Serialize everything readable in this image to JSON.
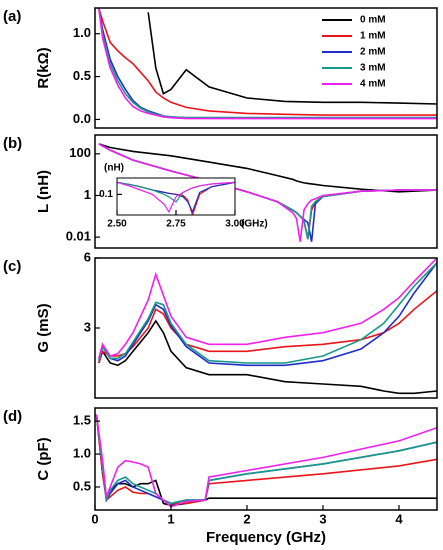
{
  "chart_data": [
    {
      "type": "line",
      "label": "(a)",
      "ylabel": "R(kΩ)",
      "x": [
        0.05,
        0.1,
        0.2,
        0.3,
        0.4,
        0.5,
        0.6,
        0.7,
        0.8,
        0.9,
        1.0,
        1.2,
        1.5,
        2.0,
        2.5,
        3.0,
        3.5,
        4.0,
        4.5
      ],
      "xlim": [
        0,
        4.5
      ],
      "ylim": [
        -0.1,
        1.3
      ],
      "yticks": [
        {
          "value": 0,
          "label": "0.0"
        },
        0.5,
        {
          "value": 1,
          "label": "1.0"
        }
      ],
      "legend": "upper right",
      "series": [
        {
          "name": "0 mM",
          "color": "#000000",
          "values": [
            null,
            null,
            null,
            null,
            null,
            null,
            null,
            1.25,
            0.6,
            0.3,
            0.35,
            0.58,
            0.38,
            0.25,
            0.21,
            0.2,
            0.2,
            0.19,
            0.18
          ]
        },
        {
          "name": "1 mM",
          "color": "#e8161b",
          "values": [
            1.3,
            1.15,
            0.9,
            0.8,
            0.72,
            0.65,
            0.55,
            0.45,
            0.32,
            0.25,
            0.2,
            0.14,
            0.1,
            0.07,
            0.06,
            0.05,
            0.05,
            0.05,
            0.05
          ]
        },
        {
          "name": "2 mM",
          "color": "#1f2ec8",
          "values": [
            1.3,
            1.05,
            0.7,
            0.5,
            0.35,
            0.22,
            0.14,
            0.1,
            0.07,
            0.04,
            0.03,
            0.02,
            0.02,
            0.02,
            0.02,
            0.02,
            0.02,
            0.02,
            0.02
          ]
        },
        {
          "name": "3 mM",
          "color": "#17998a",
          "values": [
            1.3,
            1.0,
            0.65,
            0.45,
            0.3,
            0.2,
            0.13,
            0.09,
            0.06,
            0.04,
            0.03,
            0.02,
            0.02,
            0.02,
            0.02,
            0.02,
            0.02,
            0.02,
            0.02
          ]
        },
        {
          "name": "4 mM",
          "color": "#f020f0",
          "values": [
            1.3,
            0.95,
            0.6,
            0.4,
            0.25,
            0.15,
            0.1,
            0.07,
            0.05,
            0.03,
            0.02,
            0.01,
            0.01,
            0.01,
            0.01,
            0.01,
            0.01,
            0.01,
            0.01
          ]
        }
      ]
    },
    {
      "type": "line",
      "label": "(b)",
      "ylabel": "L (nH)",
      "log": true,
      "x": [
        0.05,
        0.2,
        0.5,
        1.0,
        1.5,
        2.0,
        2.4,
        2.6,
        2.65,
        2.7,
        2.75,
        2.8,
        2.85,
        2.9,
        3.0,
        3.5,
        4.0,
        4.5
      ],
      "xlim": [
        0,
        4.5
      ],
      "ylim": [
        0.003,
        800
      ],
      "yticks": [
        0.01,
        1,
        100
      ],
      "series": [
        {
          "color": "#000000",
          "values": [
            300,
            200,
            130,
            80,
            40,
            20,
            9,
            6,
            5,
            4.5,
            4,
            3.8,
            3.6,
            3.4,
            3,
            2,
            1.5,
            1.8
          ]
        },
        {
          "color": "#e8161b",
          "values": [
            300,
            150,
            50,
            15,
            5,
            1.5,
            0.5,
            0.2,
            0.15,
            0.1,
            0.06,
            0.008,
            0.2,
            0.5,
            0.9,
            1.6,
            1.8,
            1.8
          ]
        },
        {
          "color": "#1f2ec8",
          "values": [
            300,
            150,
            50,
            15,
            5,
            1.5,
            0.5,
            0.2,
            0.15,
            0.1,
            0.07,
            0.05,
            0.006,
            0.4,
            0.9,
            1.6,
            1.8,
            1.8
          ]
        },
        {
          "color": "#17998a",
          "values": [
            300,
            150,
            50,
            15,
            5,
            1.5,
            0.5,
            0.2,
            0.15,
            0.1,
            0.06,
            0.008,
            0.3,
            0.5,
            0.9,
            1.6,
            1.8,
            1.8
          ]
        },
        {
          "color": "#f020f0",
          "values": [
            300,
            150,
            50,
            15,
            5,
            1.5,
            0.5,
            0.15,
            0.08,
            0.006,
            0.2,
            0.4,
            0.6,
            0.7,
            1.0,
            1.6,
            1.8,
            1.8
          ]
        }
      ]
    },
    {
      "type": "line",
      "label": "(c)",
      "ylabel": "G (mS)",
      "x": [
        0.05,
        0.1,
        0.2,
        0.3,
        0.4,
        0.5,
        0.6,
        0.7,
        0.8,
        0.9,
        1.0,
        1.2,
        1.5,
        2.0,
        2.5,
        3.0,
        3.5,
        3.8,
        4.0,
        4.2,
        4.5
      ],
      "xlim": [
        0,
        4.5
      ],
      "ylim": [
        0,
        6
      ],
      "yticks": [
        3,
        6
      ],
      "series": [
        {
          "color": "#000000",
          "values": [
            1.5,
            2.0,
            1.5,
            1.4,
            1.6,
            2.0,
            2.4,
            2.8,
            3.3,
            2.8,
            2.0,
            1.3,
            1.0,
            1.0,
            0.7,
            0.6,
            0.5,
            0.3,
            0.2,
            0.2,
            0.3
          ]
        },
        {
          "color": "#e8161b",
          "values": [
            1.5,
            2.0,
            1.8,
            1.8,
            1.9,
            2.2,
            2.6,
            3.0,
            3.8,
            3.6,
            3.0,
            2.3,
            2.0,
            2.0,
            2.2,
            2.3,
            2.5,
            2.8,
            3.2,
            3.8,
            4.6
          ]
        },
        {
          "color": "#1f2ec8",
          "values": [
            1.6,
            2.2,
            1.7,
            1.6,
            1.8,
            2.3,
            2.8,
            3.3,
            4.0,
            3.8,
            3.1,
            2.2,
            1.5,
            1.4,
            1.4,
            1.6,
            2.1,
            2.8,
            3.5,
            4.5,
            5.8
          ]
        },
        {
          "color": "#17998a",
          "values": [
            1.6,
            2.2,
            1.7,
            1.7,
            1.9,
            2.4,
            2.9,
            3.4,
            4.1,
            4.0,
            3.2,
            2.3,
            1.6,
            1.5,
            1.5,
            1.8,
            2.5,
            3.2,
            4.0,
            4.8,
            5.8
          ]
        },
        {
          "color": "#f020f0",
          "values": [
            1.7,
            2.3,
            1.8,
            1.9,
            2.3,
            2.8,
            3.5,
            4.2,
            5.3,
            4.4,
            3.5,
            2.6,
            2.3,
            2.3,
            2.6,
            2.8,
            3.2,
            3.8,
            4.3,
            5.0,
            6.0
          ]
        }
      ]
    },
    {
      "type": "line",
      "label": "(d)",
      "ylabel": "C (pF)",
      "xlabel": "Frequency (GHz)",
      "x": [
        0.02,
        0.1,
        0.15,
        0.2,
        0.3,
        0.4,
        0.5,
        0.6,
        0.7,
        0.8,
        0.9,
        1.0,
        1.2,
        1.45,
        1.5,
        2.0,
        3.0,
        4.0,
        4.5
      ],
      "xlim": [
        0,
        4.5
      ],
      "ylim": [
        0.15,
        1.7
      ],
      "xticks": [
        0,
        1,
        2,
        3,
        4
      ],
      "yticks": [
        0.5,
        {
          "value": 1,
          "label": "1.0"
        },
        1.5
      ],
      "series": [
        {
          "color": "#000000",
          "values": [
            1.6,
            0.7,
            0.35,
            0.45,
            0.55,
            0.55,
            0.5,
            0.55,
            0.55,
            0.6,
            0.25,
            0.22,
            0.25,
            0.3,
            0.33,
            0.33,
            0.33,
            0.33,
            0.33
          ]
        },
        {
          "color": "#e8161b",
          "values": [
            1.6,
            0.7,
            0.3,
            0.35,
            0.45,
            0.5,
            0.42,
            0.4,
            0.4,
            0.35,
            0.3,
            0.25,
            0.25,
            0.3,
            0.55,
            0.6,
            0.7,
            0.82,
            0.92
          ]
        },
        {
          "color": "#1f2ec8",
          "values": [
            1.6,
            0.8,
            0.3,
            0.4,
            0.55,
            0.6,
            0.5,
            0.45,
            0.4,
            0.35,
            0.3,
            0.25,
            0.3,
            0.3,
            0.6,
            0.7,
            0.85,
            1.05,
            1.18
          ]
        },
        {
          "color": "#17998a",
          "values": [
            1.6,
            0.8,
            0.3,
            0.45,
            0.6,
            0.65,
            0.55,
            0.5,
            0.45,
            0.4,
            0.3,
            0.25,
            0.3,
            0.3,
            0.6,
            0.7,
            0.85,
            1.05,
            1.18
          ]
        },
        {
          "color": "#f020f0",
          "values": [
            1.6,
            0.9,
            0.35,
            0.5,
            0.8,
            0.9,
            0.88,
            0.85,
            0.8,
            0.4,
            0.3,
            0.2,
            0.28,
            0.3,
            0.65,
            0.75,
            0.95,
            1.2,
            1.4
          ]
        }
      ]
    },
    {
      "type": "line",
      "inset": true,
      "ylabel": "(nH)",
      "xlabel": "(GHz)",
      "log": true,
      "x": [
        2.5,
        2.55,
        2.6,
        2.65,
        2.7,
        2.72,
        2.75,
        2.78,
        2.8,
        2.82,
        2.85,
        2.9,
        3.0
      ],
      "xlim": [
        2.5,
        3.0
      ],
      "ylim": [
        0.015,
        0.45
      ],
      "xticks": [
        {
          "value": 2.5,
          "label": "2.50"
        },
        2.75,
        {
          "value": 3,
          "label": "3.00"
        }
      ],
      "yticks": [
        0.1
      ],
      "series": [
        {
          "color": "#e8161b",
          "values": [
            0.3,
            0.25,
            0.2,
            0.15,
            0.12,
            0.11,
            0.1,
            0.09,
            0.06,
            0.015,
            0.1,
            0.2,
            0.3
          ]
        },
        {
          "color": "#1f2ec8",
          "values": [
            0.3,
            0.25,
            0.2,
            0.15,
            0.12,
            0.11,
            0.1,
            0.08,
            0.05,
            0.02,
            0.12,
            0.2,
            0.3
          ]
        },
        {
          "color": "#17998a",
          "values": [
            0.3,
            0.25,
            0.2,
            0.15,
            0.1,
            0.08,
            0.05,
            0.12,
            0.15,
            0.18,
            0.22,
            0.26,
            0.3
          ]
        },
        {
          "color": "#f020f0",
          "values": [
            0.3,
            0.22,
            0.15,
            0.1,
            0.04,
            0.02,
            0.08,
            0.12,
            0.15,
            0.18,
            0.22,
            0.26,
            0.3
          ]
        }
      ]
    }
  ]
}
